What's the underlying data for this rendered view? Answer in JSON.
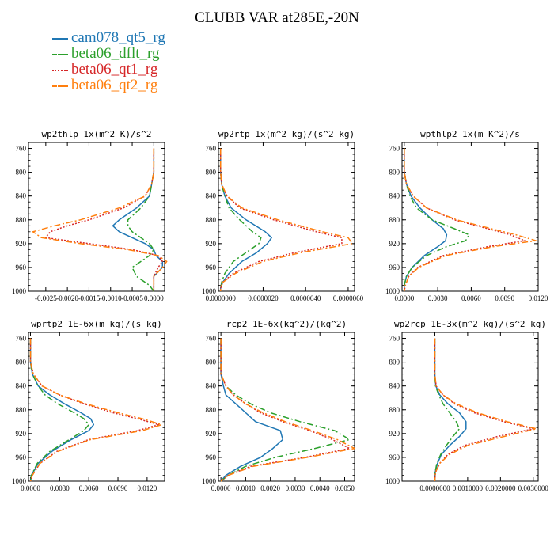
{
  "title": "CLUBB VAR at285E,-20N",
  "legend": [
    {
      "label": "cam078_qt5_rg",
      "color": "#1f77b4",
      "dash": "solid"
    },
    {
      "label": "beta06_dflt_rg",
      "color": "#2ca02c",
      "dash": "dashdot"
    },
    {
      "label": "beta06_qt1_rg",
      "color": "#d62728",
      "dash": "dotted"
    },
    {
      "label": "beta06_qt2_rg",
      "color": "#ff7f0e",
      "dash": "dashdot"
    }
  ],
  "chart_data": [
    {
      "type": "line",
      "title": "wp2thlp  1x(m^2 K)/s^2",
      "xlim": [
        -0.0029,
        0.00025
      ],
      "xticks": [
        "-0.0025",
        "-0.0020",
        "-0.0015",
        "-0.0010",
        "-0.0005",
        "0.0000"
      ],
      "xtick_values": [
        -0.0025,
        -0.002,
        -0.0015,
        -0.001,
        -0.0005,
        0.0
      ],
      "ylim": [
        750,
        1000
      ],
      "yticks": [
        "760",
        "800",
        "840",
        "880",
        "920",
        "960",
        "1000"
      ],
      "ytick_values": [
        760,
        800,
        840,
        880,
        920,
        960,
        1000
      ],
      "y": [
        760,
        800,
        820,
        840,
        860,
        880,
        890,
        900,
        910,
        920,
        930,
        940,
        950,
        960,
        975,
        990,
        1000
      ],
      "series": [
        {
          "values": [
            0.0,
            0.0,
            -5e-05,
            -0.0001,
            -0.0004,
            -0.0008,
            -0.00095,
            -0.0008,
            -0.0005,
            -0.0002,
            0.0,
            5e-05,
            0.0002,
            0.0002,
            0.0,
            0.0,
            0.0
          ]
        },
        {
          "values": [
            0.0,
            0.0,
            -5e-05,
            -0.0001,
            -0.0003,
            -0.0006,
            -0.0006,
            -0.0005,
            -0.0003,
            -0.0001,
            0.0,
            -0.0001,
            -0.0003,
            -0.0005,
            -0.0004,
            -0.0001,
            0.0
          ]
        },
        {
          "values": [
            0.0,
            0.0,
            -5e-05,
            -0.0002,
            -0.0007,
            -0.0015,
            -0.002,
            -0.0024,
            -0.0025,
            -0.0015,
            -0.0005,
            0.0001,
            0.0002,
            0.0001,
            0.0,
            0.0,
            0.0
          ]
        },
        {
          "values": [
            0.0,
            0.0,
            -5e-05,
            -0.0002,
            -0.0008,
            -0.0017,
            -0.0023,
            -0.0028,
            -0.0026,
            -0.0017,
            -0.0006,
            0.0001,
            0.0003,
            0.0002,
            0.0,
            0.0,
            0.0
          ]
        }
      ]
    },
    {
      "type": "line",
      "title": "wp2rtp  1x(m^2 kg)/(s^2 kg)",
      "xlim": [
        -1e-07,
        6.3e-06
      ],
      "xticks": [
        "0.0000000",
        "0.0000020",
        "0.0000040",
        "0.0000060"
      ],
      "xtick_values": [
        0.0,
        2e-06,
        4e-06,
        6e-06
      ],
      "ylim": [
        750,
        1000
      ],
      "yticks": [
        "760",
        "800",
        "840",
        "880",
        "920",
        "960",
        "1000"
      ],
      "ytick_values": [
        760,
        800,
        840,
        880,
        920,
        960,
        1000
      ],
      "y": [
        760,
        800,
        820,
        840,
        860,
        880,
        900,
        910,
        920,
        935,
        950,
        970,
        985,
        995,
        1000
      ],
      "series": [
        {
          "values": [
            0.0,
            0.0,
            5e-08,
            2e-07,
            5e-07,
            1.2e-06,
            2.1e-06,
            2.4e-06,
            2.2e-06,
            1.7e-06,
            1e-06,
            4e-07,
            1e-07,
            0.0,
            0.0
          ]
        },
        {
          "values": [
            0.0,
            0.0,
            5e-08,
            2e-07,
            4e-07,
            9e-07,
            1.5e-06,
            1.9e-06,
            1.8e-06,
            1.2e-06,
            6e-07,
            2e-07,
            5e-08,
            0.0,
            0.0
          ]
        },
        {
          "values": [
            0.0,
            0.0,
            5e-08,
            3e-07,
            9e-07,
            2.5e-06,
            4.5e-06,
            5.7e-06,
            5.7e-06,
            3.5e-06,
            1.8e-06,
            6e-07,
            1e-07,
            0.0,
            0.0
          ]
        },
        {
          "values": [
            0.0,
            0.0,
            5e-08,
            3e-07,
            1e-06,
            2.7e-06,
            4.8e-06,
            6e-06,
            6.2e-06,
            3.8e-06,
            2e-06,
            7e-07,
            1e-07,
            0.0,
            0.0
          ]
        }
      ]
    },
    {
      "type": "line",
      "title": "wpthlp2  1x(m K^2)/s",
      "xlim": [
        -0.0002,
        0.012
      ],
      "xticks": [
        "0.0000",
        "0.0030",
        "0.0060",
        "0.0090",
        "0.0120"
      ],
      "xtick_values": [
        0.0,
        0.003,
        0.006,
        0.009,
        0.012
      ],
      "ylim": [
        750,
        1000
      ],
      "yticks": [
        "760",
        "800",
        "840",
        "880",
        "920",
        "960",
        "1000"
      ],
      "ytick_values": [
        760,
        800,
        840,
        880,
        920,
        960,
        1000
      ],
      "y": [
        760,
        800,
        820,
        840,
        860,
        880,
        895,
        905,
        915,
        925,
        940,
        960,
        975,
        990,
        1000
      ],
      "series": [
        {
          "values": [
            0.0,
            0.0,
            0.0002,
            0.0006,
            0.0014,
            0.0025,
            0.0035,
            0.0038,
            0.0037,
            0.003,
            0.0018,
            0.0007,
            0.0002,
            0.0,
            0.0
          ]
        },
        {
          "values": [
            0.0,
            0.0,
            0.0002,
            0.0005,
            0.0011,
            0.0025,
            0.0045,
            0.0058,
            0.0055,
            0.0038,
            0.002,
            0.0007,
            0.0002,
            0.0,
            0.0
          ]
        },
        {
          "values": [
            0.0,
            0.0,
            0.0002,
            0.0008,
            0.002,
            0.0045,
            0.0075,
            0.0095,
            0.0108,
            0.0075,
            0.0035,
            0.0012,
            0.0004,
            0.0001,
            0.0
          ]
        },
        {
          "values": [
            0.0,
            0.0,
            0.0002,
            0.0008,
            0.002,
            0.0047,
            0.0078,
            0.01,
            0.0118,
            0.008,
            0.0037,
            0.0013,
            0.0004,
            0.0001,
            0.0
          ]
        }
      ]
    },
    {
      "type": "line",
      "title": "wprtp2  1E-6x(m kg)/(s kg)",
      "xlim": [
        -0.0002,
        0.0138
      ],
      "xticks": [
        "0.0000",
        "0.0030",
        "0.0060",
        "0.0090",
        "0.0120"
      ],
      "xtick_values": [
        0.0,
        0.003,
        0.006,
        0.009,
        0.012
      ],
      "ylim": [
        750,
        1000
      ],
      "yticks": [
        "760",
        "800",
        "840",
        "880",
        "920",
        "960",
        "1000"
      ],
      "ytick_values": [
        760,
        800,
        840,
        880,
        920,
        960,
        1000
      ],
      "y": [
        760,
        800,
        820,
        840,
        855,
        870,
        885,
        895,
        905,
        915,
        930,
        950,
        970,
        990,
        1000
      ],
      "series": [
        {
          "values": [
            0.0,
            0.0,
            0.0002,
            0.0008,
            0.002,
            0.0035,
            0.0052,
            0.0062,
            0.0065,
            0.006,
            0.0042,
            0.0022,
            0.0008,
            0.0001,
            0.0
          ]
        },
        {
          "values": [
            0.0,
            0.0,
            0.0002,
            0.0008,
            0.0015,
            0.0028,
            0.0045,
            0.0055,
            0.006,
            0.0055,
            0.004,
            0.002,
            0.0007,
            0.0001,
            0.0
          ]
        },
        {
          "values": [
            0.0,
            0.0,
            0.0003,
            0.0012,
            0.003,
            0.0055,
            0.0085,
            0.011,
            0.0132,
            0.011,
            0.006,
            0.0027,
            0.001,
            0.0002,
            0.0
          ]
        },
        {
          "values": [
            0.0,
            0.0,
            0.0003,
            0.0012,
            0.003,
            0.0057,
            0.009,
            0.0115,
            0.0135,
            0.0115,
            0.0062,
            0.0028,
            0.001,
            0.0002,
            0.0
          ]
        }
      ]
    },
    {
      "type": "line",
      "title": "rcp2  1E-6x(kg^2)/(kg^2)",
      "xlim": [
        -0.0001,
        0.0054
      ],
      "xticks": [
        "0.0000",
        "0.0010",
        "0.0020",
        "0.0030",
        "0.0040",
        "0.0050"
      ],
      "xtick_values": [
        0.0,
        0.001,
        0.002,
        0.003,
        0.004,
        0.005
      ],
      "ylim": [
        750,
        1000
      ],
      "yticks": [
        "760",
        "800",
        "840",
        "880",
        "920",
        "960",
        "1000"
      ],
      "ytick_values": [
        760,
        800,
        840,
        880,
        920,
        960,
        1000
      ],
      "y": [
        760,
        800,
        820,
        840,
        855,
        870,
        885,
        900,
        915,
        930,
        945,
        960,
        975,
        990,
        1000
      ],
      "series": [
        {
          "values": [
            0.0,
            0.0,
            0.0,
            0.0001,
            0.0002,
            0.0006,
            0.001,
            0.0014,
            0.0024,
            0.0025,
            0.0021,
            0.0016,
            0.0008,
            0.0002,
            0.0
          ]
        },
        {
          "values": [
            0.0,
            0.0,
            0.0,
            0.0002,
            0.0006,
            0.0012,
            0.002,
            0.0032,
            0.0046,
            0.0052,
            0.0038,
            0.0022,
            0.001,
            0.0003,
            0.0
          ]
        },
        {
          "values": [
            0.0,
            0.0,
            0.0,
            0.0002,
            0.0005,
            0.001,
            0.0016,
            0.0025,
            0.0036,
            0.0045,
            0.0052,
            0.0034,
            0.0012,
            0.0003,
            0.0
          ]
        },
        {
          "values": [
            0.0,
            0.0,
            0.0,
            0.0002,
            0.0005,
            0.001,
            0.0017,
            0.0026,
            0.0037,
            0.0047,
            0.0054,
            0.0035,
            0.0013,
            0.0003,
            0.0
          ]
        }
      ]
    },
    {
      "type": "line",
      "title": "wp2rcp  1E-3x(m^2 kg)/(s^2 kg)",
      "xlim": [
        -1e-05,
        3.15e-05
      ],
      "xticks": [
        "0.0000000",
        "0.0010000",
        "0.0020000",
        "0.0030000"
      ],
      "xtick_values": [
        0.0,
        1e-05,
        2e-05,
        3e-05
      ],
      "ylim": [
        750,
        1000
      ],
      "yticks": [
        "760",
        "800",
        "840",
        "880",
        "920",
        "960",
        "1000"
      ],
      "ytick_values": [
        760,
        800,
        840,
        880,
        920,
        960,
        1000
      ],
      "y": [
        760,
        800,
        820,
        840,
        855,
        870,
        885,
        900,
        912,
        925,
        940,
        955,
        970,
        985,
        1000
      ],
      "series": [
        {
          "values": [
            0.0,
            0.0,
            0.0,
            3e-07,
            1.5e-06,
            4e-06,
            7.5e-06,
            9.5e-06,
            9.5e-06,
            7.5e-06,
            4.5e-06,
            2e-06,
            8e-07,
            1e-07,
            0.0
          ]
        },
        {
          "values": [
            0.0,
            0.0,
            0.0,
            2e-07,
            1.2e-06,
            2.5e-06,
            4.5e-06,
            6.5e-06,
            7.5e-06,
            5.5e-06,
            3.5e-06,
            1.8e-06,
            6e-07,
            1e-07,
            0.0
          ]
        },
        {
          "values": [
            0.0,
            0.0,
            0.0,
            4e-07,
            2.5e-06,
            6e-06,
            1.2e-05,
            2.1e-05,
            3e-05,
            1.9e-05,
            9e-06,
            4e-06,
            1.5e-06,
            2e-07,
            0.0
          ]
        },
        {
          "values": [
            0.0,
            0.0,
            0.0,
            4e-07,
            2.5e-06,
            6.5e-06,
            1.3e-05,
            2.2e-05,
            3.1e-05,
            2.1e-05,
            1e-05,
            4.5e-06,
            1.5e-06,
            2e-07,
            0.0
          ]
        }
      ]
    }
  ]
}
